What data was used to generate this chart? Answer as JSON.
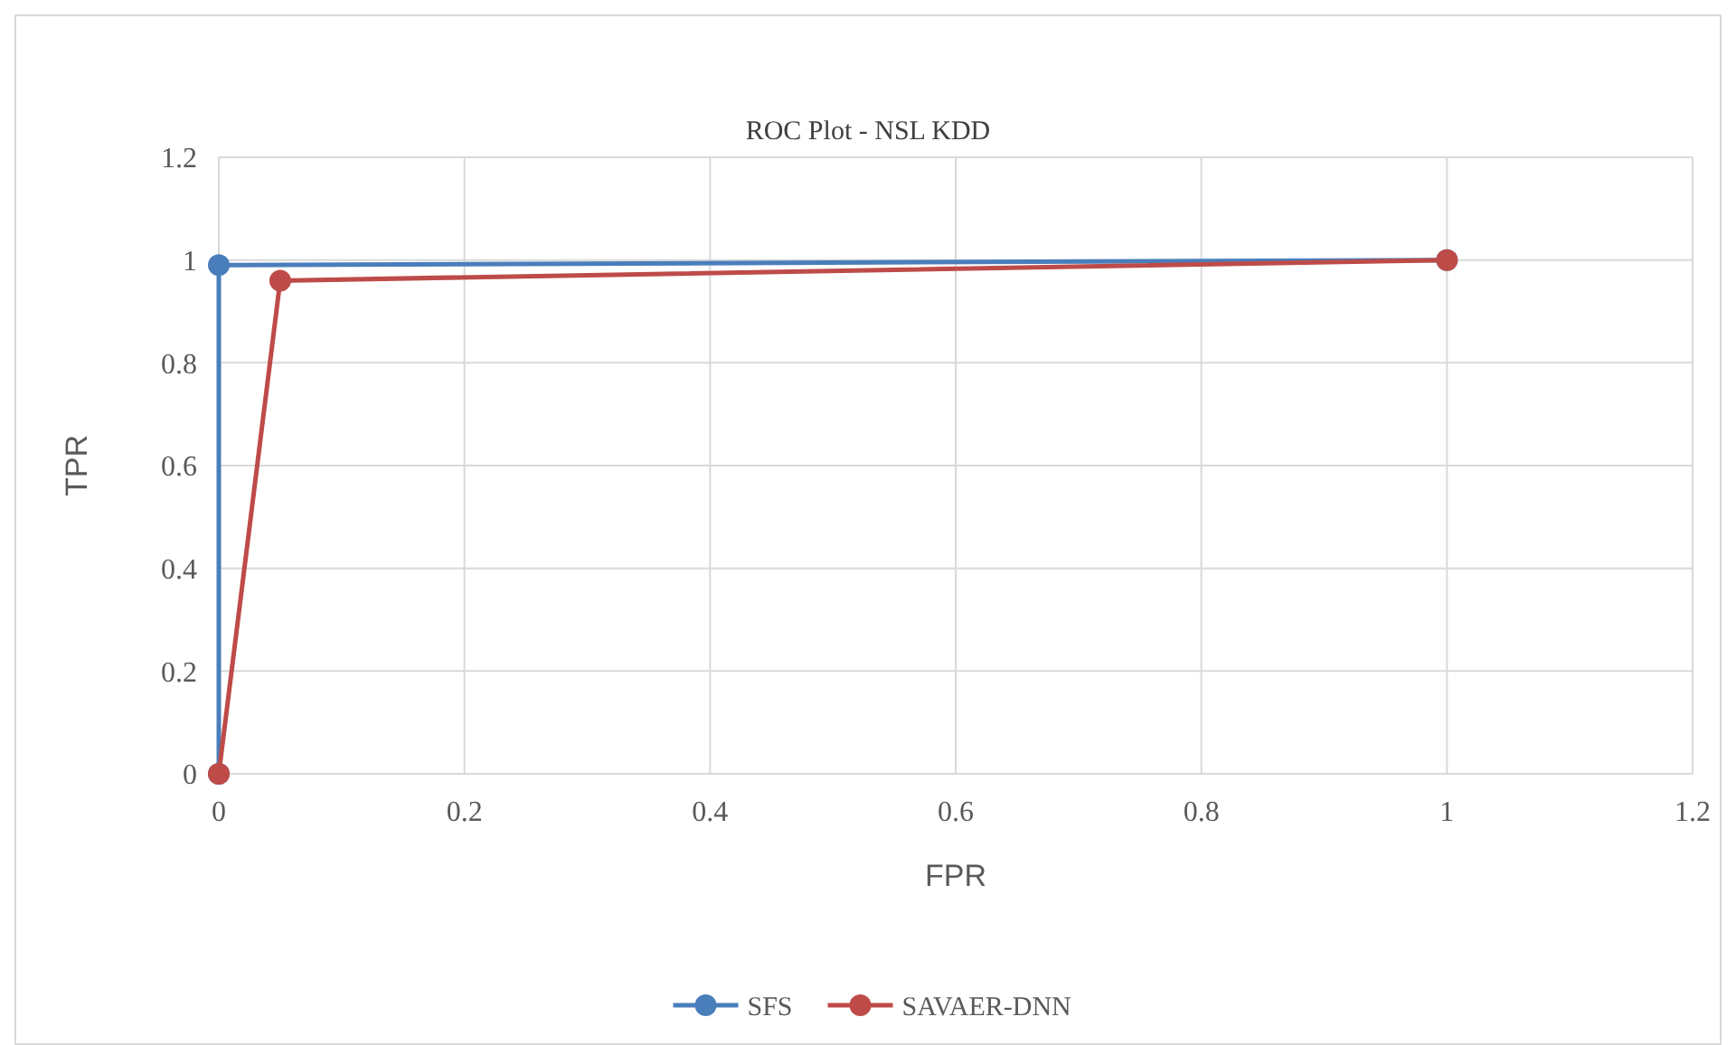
{
  "chart_data": {
    "type": "line",
    "title": "ROC Plot - NSL KDD",
    "xlabel": "FPR",
    "ylabel": "TPR",
    "xlim": [
      0,
      1.2
    ],
    "xticks": [
      0,
      0.2,
      0.4,
      0.6,
      0.8,
      1,
      1.2
    ],
    "ylim": [
      0,
      1.2
    ],
    "yticks": [
      0,
      0.2,
      0.4,
      0.6,
      0.8,
      1,
      1.2
    ],
    "grid": true,
    "legend": "bottom",
    "marker": "circle",
    "line_style": "solid",
    "series": [
      {
        "name": "SFS",
        "color": "#4a7ebb",
        "x": [
          0,
          0,
          1
        ],
        "values": [
          0,
          0.99,
          1
        ]
      },
      {
        "name": "SAVAER-DNN",
        "color": "#be4b48",
        "x": [
          0,
          0.05,
          1
        ],
        "values": [
          0,
          0.96,
          1
        ]
      }
    ]
  }
}
